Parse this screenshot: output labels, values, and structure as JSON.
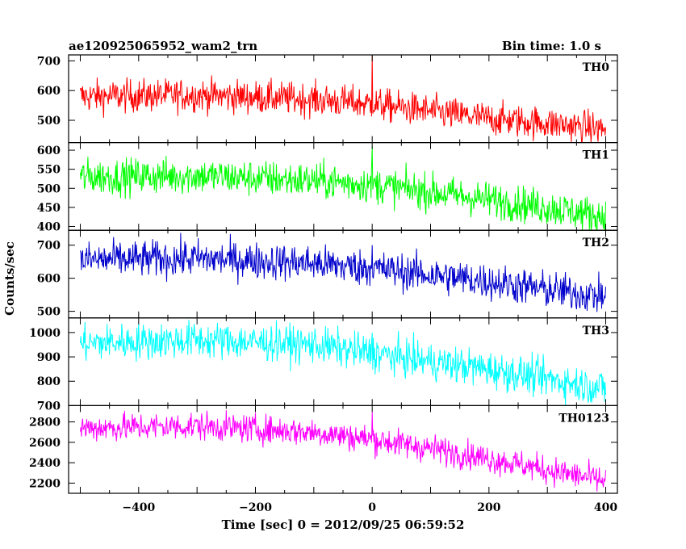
{
  "chart_data": {
    "type": "line",
    "title": "ae120925065952_wam2_trn",
    "bin_time": "Bin time: 1.0 s",
    "xlabel": "Time [sec] 0 = 2012/09/25 06:59:52",
    "ylabel": "Counts/sec",
    "xlim": [
      -520,
      420
    ],
    "xticks": [
      -400,
      -200,
      0,
      200,
      400
    ],
    "grid": false,
    "panels": [
      {
        "name": "TH0",
        "color": "#ff0000",
        "ylim": [
          425,
          720
        ],
        "yticks": [
          500,
          600,
          700
        ],
        "trend": {
          "x": [
            -500,
            -300,
            -100,
            0,
            100,
            200,
            300,
            400
          ],
          "y": [
            580,
            585,
            570,
            555,
            530,
            505,
            490,
            470
          ]
        },
        "noise": 28,
        "spike": {
          "x": 0,
          "y": 725
        }
      },
      {
        "name": "TH1",
        "color": "#00ff00",
        "ylim": [
          390,
          620
        ],
        "yticks": [
          400,
          450,
          500,
          550,
          600
        ],
        "trend": {
          "x": [
            -500,
            -300,
            -100,
            0,
            100,
            200,
            300,
            400
          ],
          "y": [
            530,
            533,
            520,
            510,
            490,
            470,
            450,
            425
          ]
        },
        "noise": 24,
        "spike": {
          "x": 0,
          "y": 610
        }
      },
      {
        "name": "TH2",
        "color": "#0000cc",
        "ylim": [
          480,
          745
        ],
        "yticks": [
          500,
          600,
          700
        ],
        "trend": {
          "x": [
            -500,
            -300,
            -100,
            0,
            100,
            200,
            300,
            400
          ],
          "y": [
            655,
            660,
            645,
            630,
            610,
            590,
            565,
            545
          ]
        },
        "noise": 28,
        "spike": {
          "x": 0,
          "y": 700
        }
      },
      {
        "name": "TH3",
        "color": "#00ffff",
        "ylim": [
          700,
          1060
        ],
        "yticks": [
          700,
          800,
          900,
          1000
        ],
        "trend": {
          "x": [
            -500,
            -300,
            -100,
            0,
            100,
            200,
            300,
            400
          ],
          "y": [
            955,
            970,
            950,
            915,
            880,
            850,
            810,
            770
          ]
        },
        "noise": 38,
        "spike": {
          "x": 0,
          "y": 1000
        }
      },
      {
        "name": "TH0123",
        "color": "#ff00ff",
        "ylim": [
          2100,
          2960
        ],
        "yticks": [
          2200,
          2400,
          2600,
          2800
        ],
        "trend": {
          "x": [
            -500,
            -300,
            -100,
            0,
            100,
            200,
            300,
            400
          ],
          "y": [
            2740,
            2760,
            2700,
            2630,
            2540,
            2440,
            2330,
            2220
          ]
        },
        "noise": 70,
        "spike": {
          "x": 0,
          "y": 2900
        }
      }
    ]
  }
}
